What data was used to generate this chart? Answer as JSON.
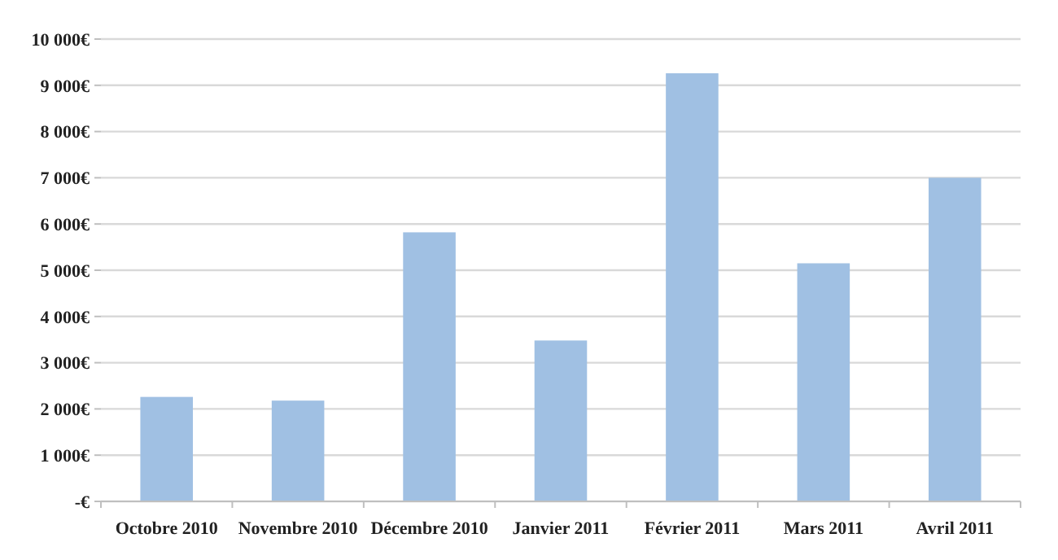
{
  "chart_data": {
    "type": "bar",
    "categories": [
      "Octobre 2010",
      "Novembre 2010",
      "Décembre 2010",
      "Janvier 2011",
      "Février 2011",
      "Mars 2011",
      "Avril 2011"
    ],
    "values": [
      2260,
      2180,
      5820,
      3480,
      9260,
      5150,
      7000
    ],
    "color": "#a0c0e3",
    "ylim": [
      0,
      10000
    ],
    "yticks": [
      {
        "value": 0,
        "label": "-€"
      },
      {
        "value": 1000,
        "label": "1 000€"
      },
      {
        "value": 2000,
        "label": "2 000€"
      },
      {
        "value": 3000,
        "label": "3 000€"
      },
      {
        "value": 4000,
        "label": "4 000€"
      },
      {
        "value": 5000,
        "label": "5 000€"
      },
      {
        "value": 6000,
        "label": "6 000€"
      },
      {
        "value": 7000,
        "label": "7 000€"
      },
      {
        "value": 8000,
        "label": "8 000€"
      },
      {
        "value": 9000,
        "label": "9 000€"
      },
      {
        "value": 10000,
        "label": "10 000€"
      }
    ],
    "grid": "y"
  }
}
